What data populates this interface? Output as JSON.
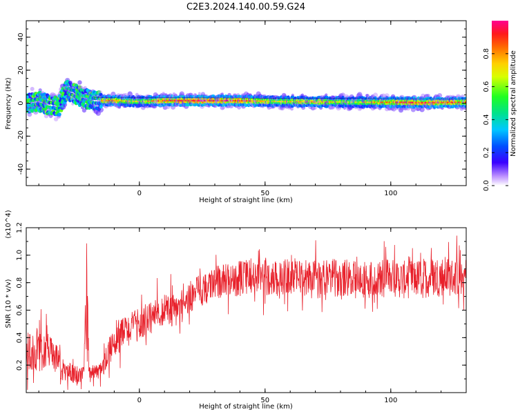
{
  "title": "C2E3.2024.140.00.59.G24",
  "chart_data": [
    {
      "type": "heatmap",
      "xlabel": "Height of straight line (km)",
      "ylabel": "Frequency (Hz)",
      "xlim": [
        -45,
        130
      ],
      "ylim": [
        -50,
        50
      ],
      "x_ticks": [
        "0",
        "50",
        "100"
      ],
      "y_ticks": [
        "40",
        "20",
        "0",
        "-20",
        "-40"
      ],
      "colorbar": {
        "label": "Normalized spectral amplitude",
        "range": [
          0,
          1
        ],
        "ticks": [
          "0.0",
          "0.2",
          "0.4",
          "0.6",
          "0.8"
        ]
      },
      "trace": {
        "x": [
          -44,
          -40,
          -36,
          -32,
          -29,
          -26,
          -22,
          -18,
          -10,
          0,
          10,
          25,
          40,
          55,
          70,
          85,
          100,
          115,
          130
        ],
        "center_freq": [
          0,
          1,
          -1,
          -2,
          8,
          6,
          3,
          1.5,
          1.5,
          1,
          1.5,
          1.5,
          1.5,
          1,
          0.8,
          0.6,
          0.5,
          0.3,
          0.5
        ],
        "peak_amplitude": [
          0.5,
          0.55,
          0.6,
          0.55,
          0.5,
          0.55,
          0.6,
          0.7,
          0.85,
          0.65,
          0.9,
          0.95,
          0.9,
          0.7,
          0.8,
          0.65,
          0.85,
          0.9,
          0.85
        ]
      }
    },
    {
      "type": "line",
      "xlabel": "Height of straight line (km)",
      "ylabel": "SNR (10 * v/v)",
      "y_multiplier": "(x10^4)",
      "xlim": [
        -45,
        130
      ],
      "ylim": [
        0,
        1.2
      ],
      "x_ticks": [
        "0",
        "50",
        "100"
      ],
      "y_ticks": [
        "0.2",
        "0.4",
        "0.6",
        "0.8",
        "1.0",
        "1.2"
      ],
      "series": [
        {
          "color": "#e8202a",
          "x": [
            -45,
            -40,
            -35,
            -30,
            -25,
            -22,
            -21,
            -20,
            -15,
            -12,
            -10,
            -5,
            0,
            5,
            10,
            15,
            20,
            25,
            30,
            35,
            40,
            45,
            50,
            55,
            60,
            65,
            70,
            75,
            80,
            85,
            90,
            95,
            100,
            105,
            110,
            115,
            120,
            125,
            130
          ],
          "y": [
            0.3,
            0.3,
            0.3,
            0.15,
            0.12,
            0.15,
            0.6,
            0.15,
            0.16,
            0.3,
            0.4,
            0.45,
            0.5,
            0.55,
            0.6,
            0.6,
            0.7,
            0.75,
            0.8,
            0.82,
            0.83,
            0.85,
            0.84,
            0.83,
            0.85,
            0.84,
            0.82,
            0.83,
            0.84,
            0.82,
            0.83,
            0.82,
            0.84,
            0.82,
            0.83,
            0.84,
            0.85,
            0.84,
            0.85
          ],
          "spread": [
            0.15,
            0.15,
            0.12,
            0.08,
            0.08,
            0.05,
            0.5,
            0.05,
            0.06,
            0.1,
            0.15,
            0.12,
            0.12,
            0.12,
            0.12,
            0.12,
            0.12,
            0.12,
            0.12,
            0.12,
            0.13,
            0.13,
            0.13,
            0.13,
            0.13,
            0.14,
            0.14,
            0.14,
            0.14,
            0.14,
            0.14,
            0.14,
            0.14,
            0.14,
            0.14,
            0.15,
            0.15,
            0.14,
            0.14
          ]
        }
      ]
    }
  ]
}
